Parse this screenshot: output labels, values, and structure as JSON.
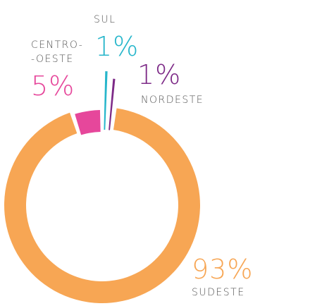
{
  "chart_data": {
    "type": "donut",
    "categories": [
      "SUL",
      "NORDESTE",
      "SUDESTE",
      "CENTRO-\n-OESTE"
    ],
    "values": [
      1,
      1,
      93,
      5
    ],
    "value_labels": [
      "1%",
      "1%",
      "93%",
      "5%"
    ],
    "colors": [
      "#27b6cb",
      "#7d2a87",
      "#f7a654",
      "#e6479b"
    ]
  }
}
